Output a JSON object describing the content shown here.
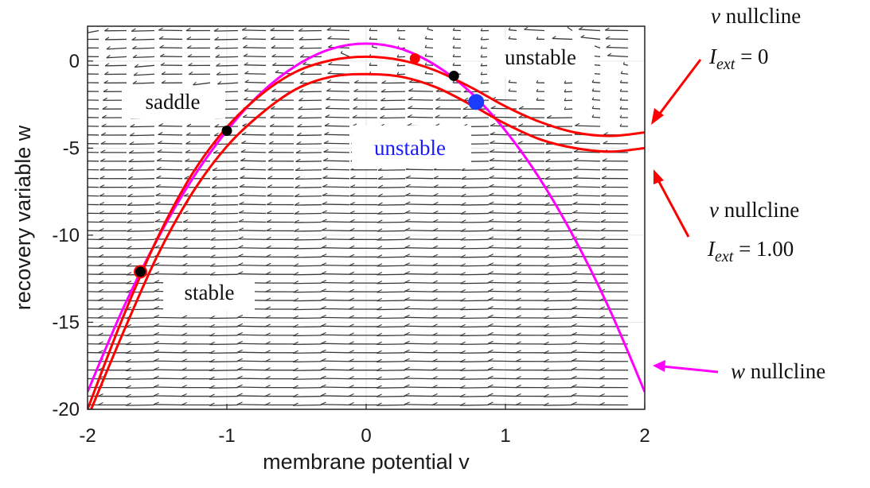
{
  "chart_data": {
    "type": "line",
    "title": "",
    "xlabel": "membrane potential v",
    "ylabel": "recovery variable  w",
    "xlim": [
      -2,
      2
    ],
    "ylim": [
      -20,
      2
    ],
    "xticks": [
      "-2",
      "-1",
      "0",
      "1",
      "2"
    ],
    "yticks": [
      "-20",
      "-15",
      "-10",
      "-5",
      "0"
    ],
    "xtick_values": [
      -2,
      -1,
      0,
      1,
      2
    ],
    "ytick_values": [
      -20,
      -15,
      -10,
      -5,
      0
    ],
    "grid": true,
    "background_field": "direction vector field (quiver)",
    "series": [
      {
        "color": "#ff00ff",
        "x": [
          -2,
          -1.75,
          -1.5,
          -1.25,
          -1,
          -0.75,
          -0.5,
          -0.25,
          0,
          0.25,
          0.5,
          0.75,
          1,
          1.25,
          1.5,
          1.75,
          2
        ],
        "y": [
          -19,
          -14.3,
          -10.25,
          -6.8,
          -4,
          -1.8,
          -0.25,
          0.7,
          1,
          0.7,
          -0.25,
          -1.8,
          -4,
          -6.8,
          -10.25,
          -14.3,
          -19
        ]
      },
      {
        "color": "#ff0000",
        "x": [
          -2,
          -1.75,
          -1.5,
          -1.25,
          -1,
          -0.75,
          -0.5,
          -0.25,
          0,
          0.25,
          0.5,
          0.75,
          1,
          1.25,
          1.5,
          1.75,
          2
        ],
        "y": [
          -20,
          -14.8,
          -10.2,
          -6.5,
          -3.8,
          -1.9,
          -0.6,
          0.05,
          0.25,
          0.05,
          -0.55,
          -1.5,
          -2.6,
          -3.5,
          -4.1,
          -4.3,
          -4.1
        ]
      },
      {
        "color": "#ff0000",
        "x": [
          -2,
          -1.75,
          -1.5,
          -1.25,
          -1,
          -0.75,
          -0.5,
          -0.25,
          0,
          0.25,
          0.5,
          0.75,
          1,
          1.25,
          1.5,
          1.75,
          2
        ],
        "y": [
          -20.5,
          -15.7,
          -11.2,
          -7.6,
          -4.9,
          -3.0,
          -1.6,
          -0.9,
          -0.75,
          -0.9,
          -1.5,
          -2.5,
          -3.6,
          -4.5,
          -5.0,
          -5.2,
          -5.0
        ]
      }
    ],
    "points": [
      {
        "x": -1.62,
        "y": -12.1,
        "color": "#000000",
        "ring": "#ff0000"
      },
      {
        "x": -1.0,
        "y": -4.0,
        "color": "#000000"
      },
      {
        "x": 0.35,
        "y": 0.15,
        "color": "#ff0000"
      },
      {
        "x": 0.63,
        "y": -0.85,
        "color": "#000000"
      },
      {
        "x": 0.79,
        "y": -2.35,
        "color": "#1a3cff"
      }
    ],
    "regions": [
      {
        "text": "saddle",
        "color": "#111111"
      },
      {
        "text": "stable",
        "color": "#111111"
      },
      {
        "text": "unstable",
        "color": "#111111"
      },
      {
        "text": "unstable",
        "color": "#1a1aff"
      }
    ],
    "annotations": [
      {
        "line1": "v nullcline",
        "line2": "I",
        "sub": "ext",
        "line2_tail": " = 0",
        "color": "#ff0000"
      },
      {
        "line1": "v nullcline",
        "line2": "I",
        "sub": "ext",
        "line2_tail": " = 1.00",
        "color": "#ff0000"
      },
      {
        "line1": "w nullcline",
        "color": "#ff00ff"
      }
    ]
  }
}
